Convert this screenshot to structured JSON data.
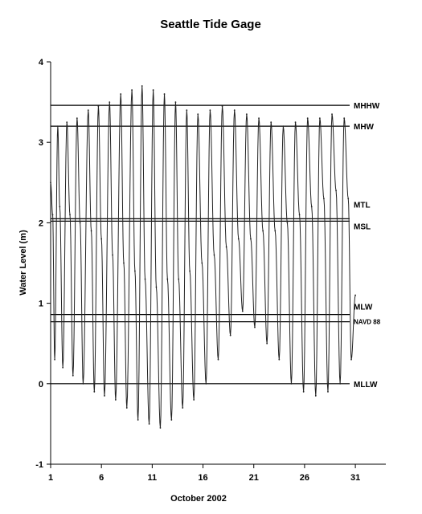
{
  "chart_data": {
    "type": "line",
    "title": "Seattle Tide Gage",
    "xlabel": "October 2002",
    "ylabel": "Water Level (m)",
    "xlim": [
      1,
      34
    ],
    "ylim": [
      -1,
      4
    ],
    "x_ticks": [
      1,
      6,
      11,
      16,
      21,
      26,
      31
    ],
    "y_ticks": [
      -1,
      0,
      1,
      2,
      3,
      4
    ],
    "grid": false,
    "datums": [
      {
        "name": "MHHW",
        "value": 3.46
      },
      {
        "name": "MHW",
        "value": 3.2
      },
      {
        "name": "MTL",
        "value": 2.05
      },
      {
        "name": "MSL",
        "value": 2.02
      },
      {
        "name": "MLW",
        "value": 0.86
      },
      {
        "name": "NAVD 88",
        "value": 0.77
      },
      {
        "name": "MLLW",
        "value": 0.0
      }
    ],
    "series": [
      {
        "extremes": [
          [
            1.0,
            2.5
          ],
          [
            1.2,
            2.1
          ],
          [
            1.4,
            0.3
          ],
          [
            1.7,
            3.2
          ],
          [
            1.9,
            2.2
          ],
          [
            2.2,
            0.2
          ],
          [
            2.6,
            3.25
          ],
          [
            2.9,
            2.1
          ],
          [
            3.2,
            0.1
          ],
          [
            3.6,
            3.3
          ],
          [
            3.9,
            2.0
          ],
          [
            4.2,
            0.0
          ],
          [
            4.7,
            3.4
          ],
          [
            5.0,
            1.9
          ],
          [
            5.3,
            -0.1
          ],
          [
            5.7,
            3.45
          ],
          [
            6.0,
            1.8
          ],
          [
            6.3,
            -0.15
          ],
          [
            6.8,
            3.5
          ],
          [
            7.1,
            1.6
          ],
          [
            7.4,
            -0.2
          ],
          [
            7.9,
            3.6
          ],
          [
            8.2,
            1.5
          ],
          [
            8.5,
            -0.3
          ],
          [
            9.0,
            3.65
          ],
          [
            9.3,
            1.4
          ],
          [
            9.6,
            -0.45
          ],
          [
            10.0,
            3.7
          ],
          [
            10.3,
            1.3
          ],
          [
            10.7,
            -0.5
          ],
          [
            11.1,
            3.65
          ],
          [
            11.4,
            1.2
          ],
          [
            11.8,
            -0.55
          ],
          [
            12.2,
            3.6
          ],
          [
            12.5,
            1.3
          ],
          [
            12.9,
            -0.45
          ],
          [
            13.3,
            3.5
          ],
          [
            13.6,
            1.3
          ],
          [
            14.0,
            -0.3
          ],
          [
            14.4,
            3.4
          ],
          [
            14.7,
            1.4
          ],
          [
            15.1,
            -0.2
          ],
          [
            15.5,
            3.35
          ],
          [
            15.9,
            1.5
          ],
          [
            16.3,
            0.0
          ],
          [
            16.7,
            3.4
          ],
          [
            17.1,
            1.6
          ],
          [
            17.5,
            0.3
          ],
          [
            17.9,
            3.45
          ],
          [
            18.3,
            1.7
          ],
          [
            18.7,
            0.6
          ],
          [
            19.1,
            3.4
          ],
          [
            19.5,
            1.8
          ],
          [
            19.9,
            0.9
          ],
          [
            20.3,
            3.35
          ],
          [
            20.7,
            1.8
          ],
          [
            21.1,
            0.7
          ],
          [
            21.5,
            3.3
          ],
          [
            21.9,
            1.9
          ],
          [
            22.3,
            0.5
          ],
          [
            22.7,
            3.25
          ],
          [
            23.1,
            1.9
          ],
          [
            23.5,
            0.3
          ],
          [
            23.9,
            3.2
          ],
          [
            24.3,
            2.0
          ],
          [
            24.7,
            0.0
          ],
          [
            25.1,
            3.25
          ],
          [
            25.5,
            2.1
          ],
          [
            25.9,
            -0.1
          ],
          [
            26.3,
            3.3
          ],
          [
            26.7,
            2.2
          ],
          [
            27.1,
            -0.15
          ],
          [
            27.5,
            3.3
          ],
          [
            27.9,
            2.3
          ],
          [
            28.3,
            -0.1
          ],
          [
            28.7,
            3.35
          ],
          [
            29.1,
            2.4
          ],
          [
            29.5,
            0.0
          ],
          [
            29.9,
            3.3
          ],
          [
            30.3,
            2.3
          ],
          [
            30.6,
            0.3
          ],
          [
            31.0,
            1.1
          ]
        ]
      }
    ]
  }
}
